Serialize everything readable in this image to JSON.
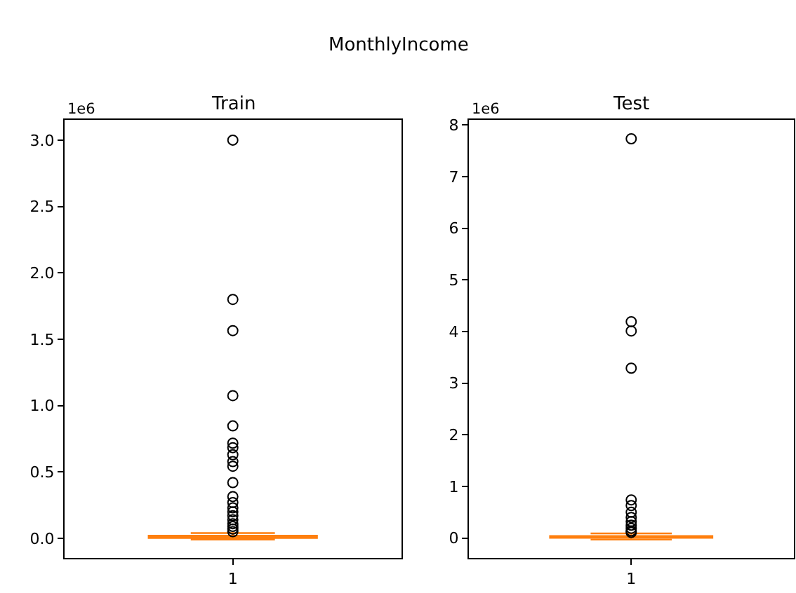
{
  "chart_data": [
    {
      "type": "box",
      "title": "Train",
      "annotations": [
        "MonthlyIncome",
        "1e6"
      ],
      "categories": [
        "1"
      ],
      "ylim": [
        -0.15,
        3.15
      ],
      "yticks": [
        {
          "value": 0,
          "label": "0.0"
        },
        {
          "value": 0.5,
          "label": "0.5"
        },
        {
          "value": 1,
          "label": "1.0"
        },
        {
          "value": 1.5,
          "label": "1.5"
        },
        {
          "value": 2,
          "label": "2.0"
        },
        {
          "value": 2.5,
          "label": "2.5"
        },
        {
          "value": 3,
          "label": "3.0"
        }
      ],
      "series": [
        {
          "color": "#ff7f0e",
          "boxes": [
            {
              "low": -0.01,
              "q1": 0.003,
              "median": 0.01,
              "q3": 0.02,
              "high": 0.04,
              "outliers": [
                3.0,
                1.8,
                1.565,
                1.075,
                0.847,
                0.717,
                0.683,
                0.63,
                0.578,
                0.543,
                0.42,
                0.315,
                0.27,
                0.23,
                0.2,
                0.17,
                0.14,
                0.11,
                0.09,
                0.07,
                0.05
              ]
            }
          ]
        }
      ]
    },
    {
      "type": "box",
      "title": "Test",
      "annotations": [
        "1e6"
      ],
      "categories": [
        "1"
      ],
      "ylim": [
        -0.39,
        8.09
      ],
      "yticks": [
        0,
        1,
        2,
        3,
        4,
        5,
        6,
        7,
        8
      ],
      "series": [
        {
          "color": "#ff7f0e",
          "boxes": [
            {
              "low": -0.03,
              "q1": 0.005,
              "median": 0.02,
              "q3": 0.04,
              "high": 0.09,
              "outliers": [
                7.73,
                4.19,
                4.01,
                3.29,
                0.74,
                0.63,
                0.5,
                0.4,
                0.32,
                0.25,
                0.19,
                0.14,
                0.11
              ]
            }
          ]
        }
      ]
    }
  ]
}
